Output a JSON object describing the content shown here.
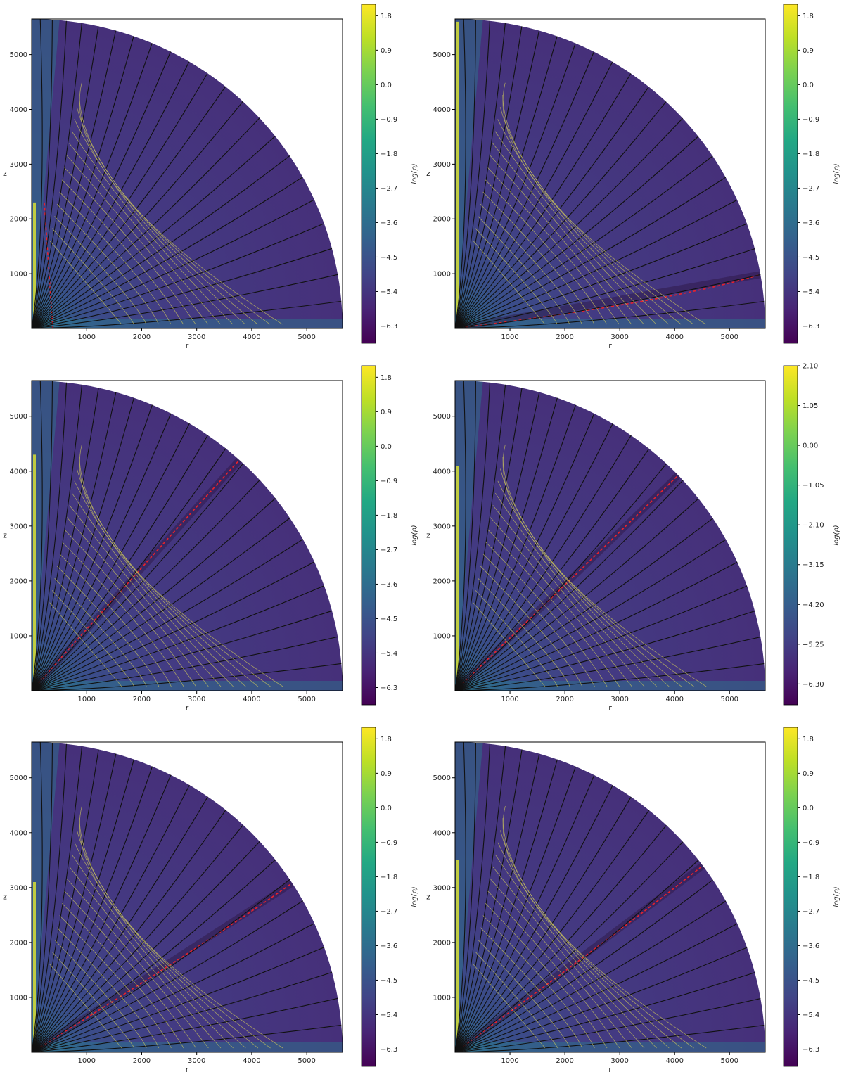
{
  "chart_data": [
    {
      "type": "heatmap",
      "xlabel": "r",
      "ylabel": "z",
      "xticks": [
        1000,
        2000,
        3000,
        4000,
        5000
      ],
      "yticks": [
        1000,
        2000,
        3000,
        4000,
        5000
      ],
      "xlim": [
        0,
        5650
      ],
      "ylim": [
        0,
        5650
      ],
      "colorbar": {
        "label": "log(ρ)",
        "range": [
          -6.75,
          2.1
        ],
        "ticks": [
          "1.8",
          "0.9",
          "0.0",
          "−0.9",
          "−1.8",
          "−2.7",
          "−3.6",
          "−4.5",
          "−5.4",
          "−6.3"
        ],
        "tick_values": [
          1.8,
          0.9,
          0.0,
          -0.9,
          -1.8,
          -2.7,
          -3.6,
          -4.5,
          -5.4,
          -6.3
        ]
      },
      "jet_extent_z": 2300,
      "shock_angle_deg": 0
    },
    {
      "type": "heatmap",
      "xlabel": "r",
      "ylabel": "z",
      "xticks": [
        1000,
        2000,
        3000,
        4000,
        5000
      ],
      "yticks": [
        1000,
        2000,
        3000,
        4000,
        5000
      ],
      "xlim": [
        0,
        5650
      ],
      "ylim": [
        0,
        5650
      ],
      "colorbar": {
        "label": "log(ρ)",
        "range": [
          -6.75,
          2.1
        ],
        "ticks": [
          "1.8",
          "0.9",
          "0.0",
          "−0.9",
          "−1.8",
          "−2.7",
          "−3.6",
          "−4.5",
          "−5.4",
          "−6.3"
        ],
        "tick_values": [
          1.8,
          0.9,
          0.0,
          -0.9,
          -1.8,
          -2.7,
          -3.6,
          -4.5,
          -5.4,
          -6.3
        ]
      },
      "jet_extent_z": 5600,
      "shock_angle_deg": 10
    },
    {
      "type": "heatmap",
      "xlabel": "r",
      "ylabel": "z",
      "xticks": [
        1000,
        2000,
        3000,
        4000,
        5000
      ],
      "yticks": [
        1000,
        2000,
        3000,
        4000,
        5000
      ],
      "xlim": [
        0,
        5650
      ],
      "ylim": [
        0,
        5650
      ],
      "colorbar": {
        "label": "log(ρ)",
        "range": [
          -6.75,
          2.1
        ],
        "ticks": [
          "1.8",
          "0.9",
          "0.0",
          "−0.9",
          "−1.8",
          "−2.7",
          "−3.6",
          "−4.5",
          "−5.4",
          "−6.3"
        ],
        "tick_values": [
          1.8,
          0.9,
          0.0,
          -0.9,
          -1.8,
          -2.7,
          -3.6,
          -4.5,
          -5.4,
          -6.3
        ]
      },
      "jet_extent_z": 4300,
      "shock_angle_deg": 48
    },
    {
      "type": "heatmap",
      "xlabel": "r",
      "ylabel": "z",
      "xticks": [
        1000,
        2000,
        3000,
        4000,
        5000
      ],
      "yticks": [
        1000,
        2000,
        3000,
        4000,
        5000
      ],
      "xlim": [
        0,
        5650
      ],
      "ylim": [
        0,
        5650
      ],
      "colorbar": {
        "label": "log(ρ)",
        "range": [
          -6.85,
          2.1
        ],
        "ticks": [
          "2.10",
          "1.05",
          "0.00",
          "−1.05",
          "−2.10",
          "−3.15",
          "−4.20",
          "−5.25",
          "−6.30"
        ],
        "tick_values": [
          2.1,
          1.05,
          0.0,
          -1.05,
          -2.1,
          -3.15,
          -4.2,
          -5.25,
          -6.3
        ]
      },
      "jet_extent_z": 4100,
      "shock_angle_deg": 44
    },
    {
      "type": "heatmap",
      "xlabel": "r",
      "ylabel": "z",
      "xticks": [
        1000,
        2000,
        3000,
        4000,
        5000
      ],
      "yticks": [
        1000,
        2000,
        3000,
        4000,
        5000
      ],
      "xlim": [
        0,
        5650
      ],
      "ylim": [
        0,
        5650
      ],
      "colorbar": {
        "label": "log(ρ)",
        "range": [
          -6.75,
          2.1
        ],
        "ticks": [
          "1.8",
          "0.9",
          "0.0",
          "−0.9",
          "−1.8",
          "−2.7",
          "−3.6",
          "−4.5",
          "−5.4",
          "−6.3"
        ],
        "tick_values": [
          1.8,
          0.9,
          0.0,
          -0.9,
          -1.8,
          -2.7,
          -3.6,
          -4.5,
          -5.4,
          -6.3
        ]
      },
      "jet_extent_z": 3100,
      "shock_angle_deg": 33
    },
    {
      "type": "heatmap",
      "xlabel": "r",
      "ylabel": "z",
      "xticks": [
        1000,
        2000,
        3000,
        4000,
        5000
      ],
      "yticks": [
        1000,
        2000,
        3000,
        4000,
        5000
      ],
      "xlim": [
        0,
        5650
      ],
      "ylim": [
        0,
        5650
      ],
      "colorbar": {
        "label": "log(ρ)",
        "range": [
          -6.75,
          2.1
        ],
        "ticks": [
          "1.8",
          "0.9",
          "0.0",
          "−0.9",
          "−1.8",
          "−2.7",
          "−3.6",
          "−4.5",
          "−5.4",
          "−6.3"
        ],
        "tick_values": [
          1.8,
          0.9,
          0.0,
          -0.9,
          -1.8,
          -2.7,
          -3.6,
          -4.5,
          -5.4,
          -6.3
        ]
      },
      "jet_extent_z": 3500,
      "shock_angle_deg": 37
    }
  ]
}
